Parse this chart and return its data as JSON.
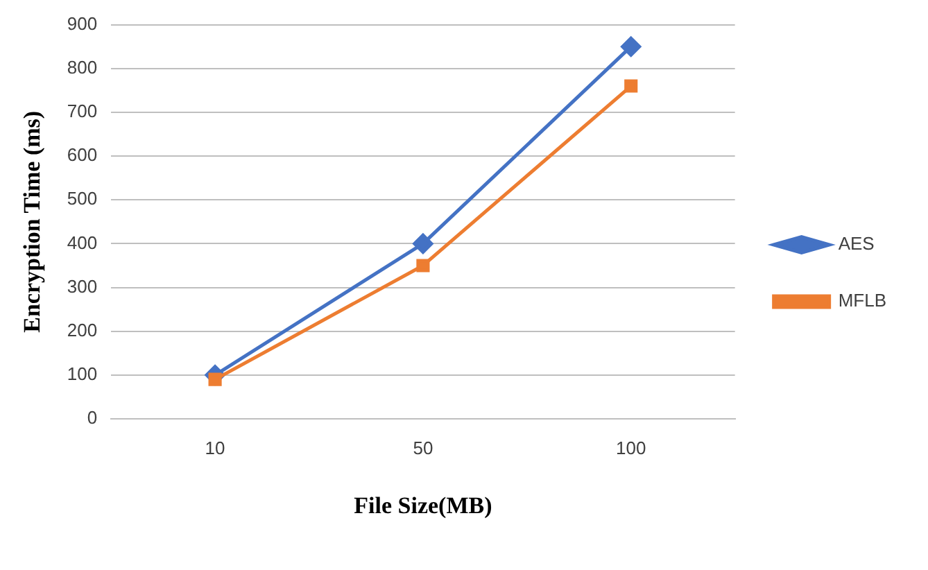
{
  "chart_data": {
    "type": "line",
    "xlabel": "File Size(MB)",
    "ylabel": "Encryption Time (ms)",
    "categories": [
      "10",
      "50",
      "100"
    ],
    "series": [
      {
        "name": "AES",
        "color": "#4472c4",
        "marker": "diamond",
        "values": [
          100,
          400,
          850
        ]
      },
      {
        "name": "MFLB",
        "color": "#ed7d31",
        "marker": "square",
        "values": [
          90,
          350,
          760
        ]
      }
    ],
    "ylim": [
      0,
      900
    ],
    "yticks": [
      0,
      100,
      200,
      300,
      400,
      500,
      600,
      700,
      800,
      900
    ],
    "grid": "y",
    "legend": "right"
  }
}
